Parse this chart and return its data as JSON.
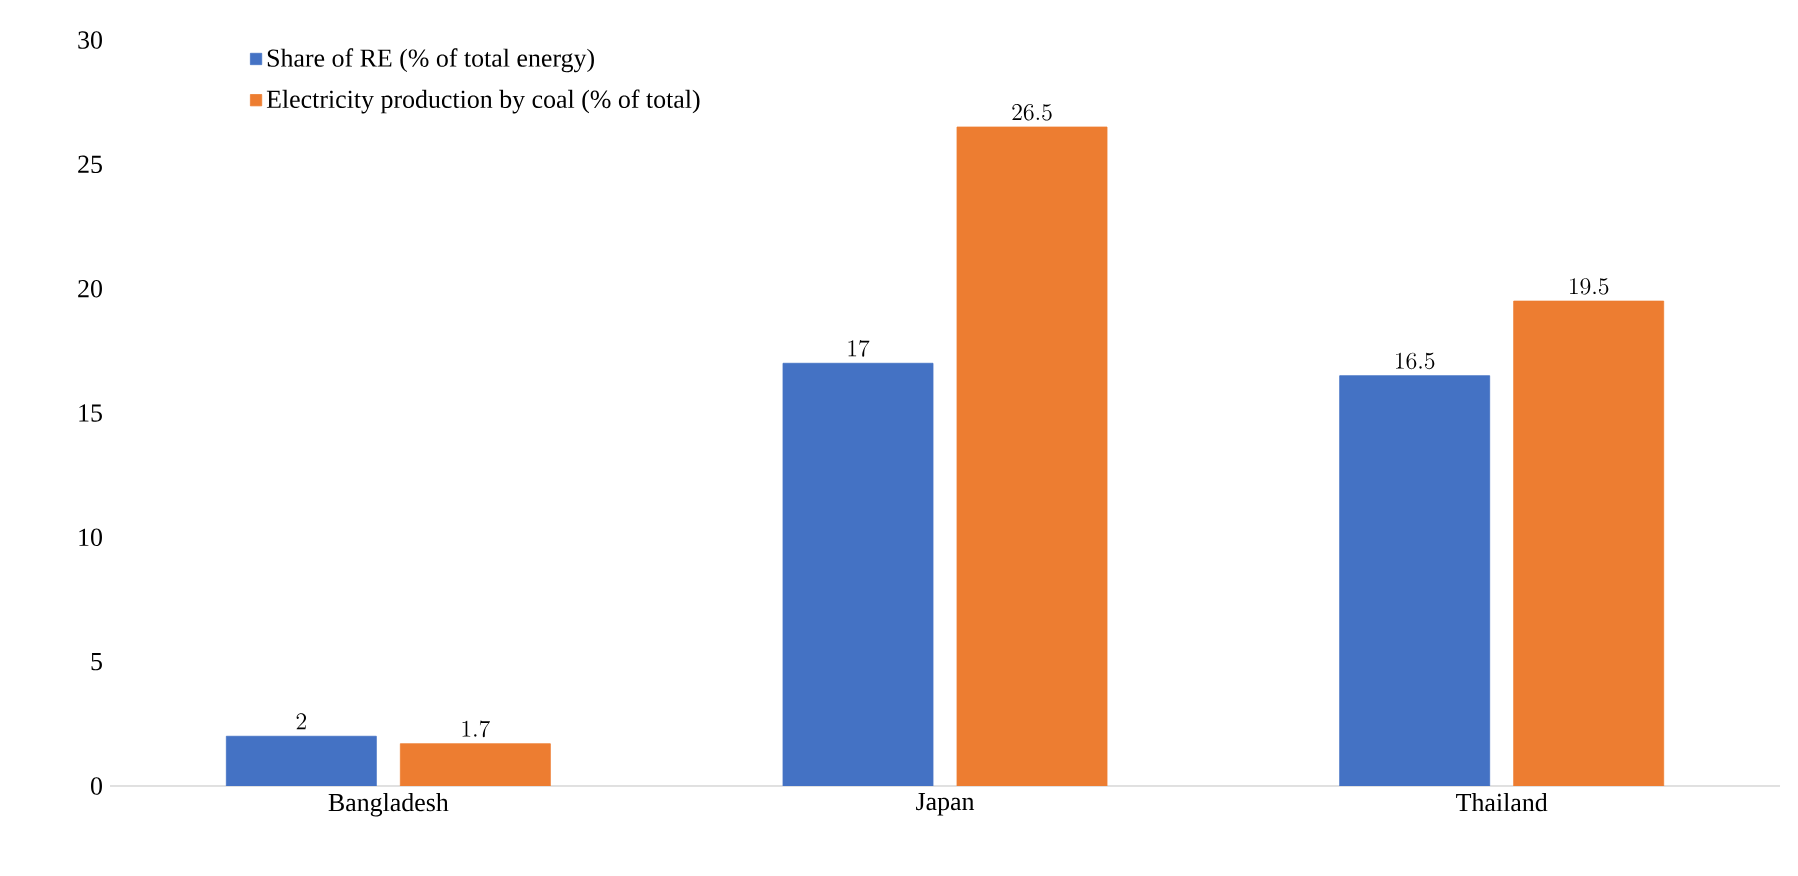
{
  "chart_data": {
    "type": "bar",
    "categories": [
      "Bangladesh",
      "Japan",
      "Thailand"
    ],
    "series": [
      {
        "name": "Share of RE (% of total energy)",
        "color": "#4472c4",
        "values": [
          2,
          17,
          16.5
        ]
      },
      {
        "name": "Electricity production by coal (% of total)",
        "color": "#ed7d31",
        "values": [
          1.7,
          26.5,
          19.5
        ]
      }
    ],
    "ylim": [
      0,
      30
    ],
    "yticks": [
      0,
      5,
      10,
      15,
      20,
      25,
      30
    ],
    "data_labels": true,
    "legend": "top left",
    "grid": false
  }
}
